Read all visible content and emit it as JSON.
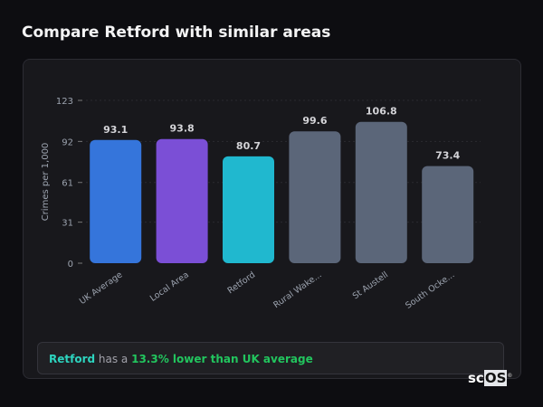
{
  "title": "Compare Retford with similar areas",
  "chart_data": {
    "type": "bar",
    "categories": [
      "UK Average",
      "Local Area",
      "Retford",
      "Rural Wake...",
      "St Austell",
      "South Ocke..."
    ],
    "values": [
      93.1,
      93.8,
      80.7,
      99.6,
      106.8,
      73.4
    ],
    "colors": [
      "#3575db",
      "#7b4fd6",
      "#20b8cf",
      "#5b6679",
      "#5b6679",
      "#5b6679"
    ],
    "ylabel": "Crimes per 1,000",
    "yticks": [
      0,
      31,
      61,
      92,
      123
    ],
    "ylim": [
      0,
      123
    ],
    "grid": true
  },
  "summary": {
    "area": "Retford",
    "middle": " has a ",
    "comparison": "13.3% lower than UK average"
  },
  "logo": {
    "text_a": "sc",
    "text_b": "OS",
    "mark": "®"
  }
}
